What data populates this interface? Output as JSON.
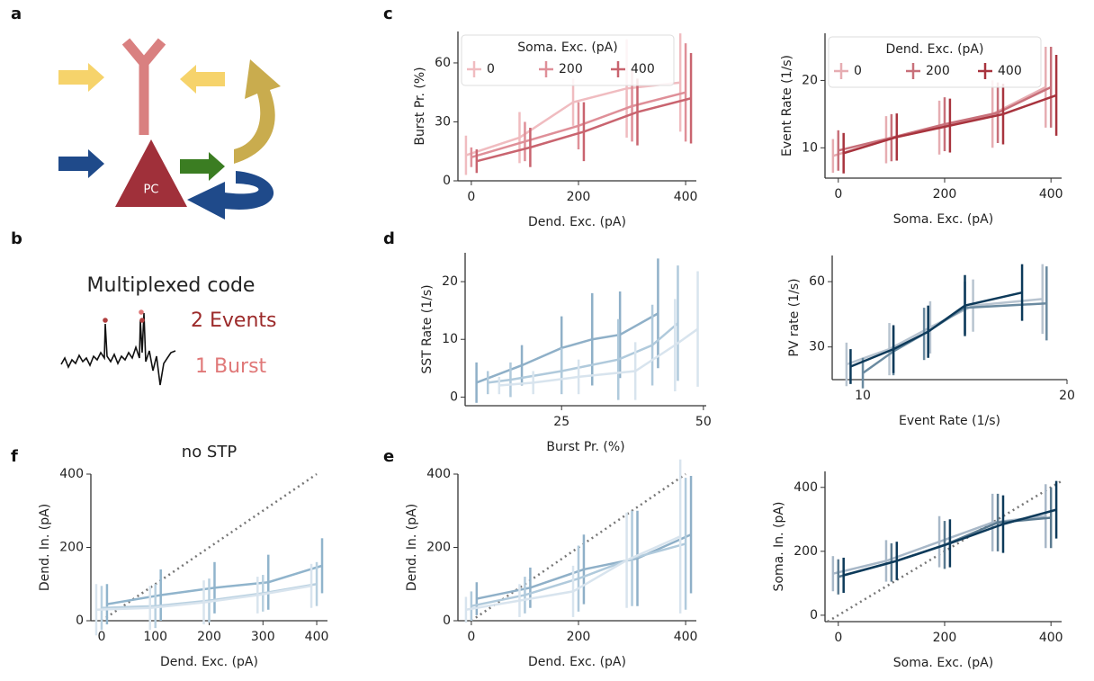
{
  "panel_labels": [
    "a",
    "b",
    "c",
    "d",
    "e",
    "f"
  ],
  "diagram": {
    "cell_label": "PC"
  },
  "code": {
    "title": "Multiplexed code",
    "events": "2 Events",
    "bursts": "1 Burst"
  },
  "chart_data": [
    {
      "type": "line",
      "x_label": "Dend. Exc. (pA)",
      "y_label": "Burst Pr. (%)",
      "xlim": [
        -25,
        420
      ],
      "ylim": [
        0,
        76
      ],
      "xticks": [
        0,
        200,
        400
      ],
      "yticks": [
        0,
        30,
        60
      ],
      "legend": "upper left",
      "legend_title": "Soma. Exc. (pA)",
      "series": [
        {
          "name": "0",
          "color": "#f0bcc0",
          "x": [
            -10,
            90,
            190,
            290,
            390
          ],
          "values": [
            13,
            22,
            40,
            47,
            50
          ],
          "errors": [
            10,
            13,
            12,
            25,
            25
          ]
        },
        {
          "name": "200",
          "color": "#df8f98",
          "x": [
            0,
            100,
            200,
            300,
            400
          ],
          "values": [
            12,
            20,
            28,
            38,
            45
          ],
          "errors": [
            5,
            10,
            12,
            18,
            25
          ]
        },
        {
          "name": "400",
          "color": "#c9646f",
          "x": [
            10,
            110,
            210,
            310,
            410
          ],
          "values": [
            10,
            17,
            25,
            35,
            42
          ],
          "errors": [
            6,
            10,
            15,
            17,
            23
          ]
        }
      ]
    },
    {
      "type": "line",
      "x_label": "Soma. Exc. (pA)",
      "y_label": "Event Rate (1/s)",
      "xlim": [
        -25,
        420
      ],
      "ylim": [
        5.5,
        27
      ],
      "xticks": [
        0,
        200,
        400
      ],
      "yticks": [
        10,
        20
      ],
      "legend": "upper left",
      "legend_title": "Dend. Exc. (pA)",
      "series": [
        {
          "name": "0",
          "color": "#e6adb2",
          "x": [
            -10,
            90,
            190,
            290,
            390
          ],
          "values": [
            8.8,
            11.2,
            13,
            15,
            19
          ],
          "errors": [
            2.5,
            3.5,
            4,
            5,
            6
          ]
        },
        {
          "name": "200",
          "color": "#c8707a",
          "x": [
            0,
            100,
            200,
            300,
            400
          ],
          "values": [
            9.6,
            11.5,
            13.5,
            15.2,
            19
          ],
          "errors": [
            3,
            3.5,
            4,
            4.5,
            6
          ]
        },
        {
          "name": "400",
          "color": "#a8343e",
          "x": [
            10,
            110,
            210,
            310,
            410
          ],
          "values": [
            9.2,
            11.6,
            13.3,
            15,
            17.8
          ],
          "errors": [
            3,
            3.5,
            4,
            4.5,
            6
          ]
        }
      ]
    },
    {
      "type": "line",
      "x_label": "Burst Pr. (%)",
      "y_label": "SST Rate (1/s)",
      "xlim": [
        8,
        50.5
      ],
      "ylim": [
        -1.5,
        25
      ],
      "xticks": [
        25,
        50
      ],
      "yticks": [
        0,
        10,
        20
      ],
      "series": [
        {
          "color": "#8fb0c8",
          "x": [
            10,
            18,
            25,
            30.4,
            35.3,
            42
          ],
          "values": [
            2.5,
            5.5,
            8.5,
            10,
            10.8,
            14.5
          ],
          "errors": [
            3.5,
            3.5,
            5.5,
            8,
            7.5,
            9.5
          ]
        },
        {
          "color": "#b0cadc",
          "x": [
            12,
            16,
            25,
            35,
            41,
            45.5
          ],
          "values": [
            2.5,
            3,
            4.5,
            6.5,
            9,
            12.8
          ],
          "errors": [
            2,
            3,
            4,
            7,
            7,
            10
          ]
        },
        {
          "color": "#d8e4ee",
          "x": [
            14,
            20,
            28,
            38,
            45,
            49
          ],
          "values": [
            2,
            2.5,
            3.5,
            4.5,
            9,
            11.8
          ],
          "errors": [
            1.5,
            2,
            3,
            5,
            8,
            10
          ]
        }
      ]
    },
    {
      "type": "line",
      "x_label": "Event Rate (1/s)",
      "y_label": "PV rate (1/s)",
      "xlim": [
        8.5,
        20
      ],
      "ylim": [
        15,
        72
      ],
      "xticks": [
        10,
        20
      ],
      "yticks": [
        30,
        60
      ],
      "series": [
        {
          "color": "#b8c4d0",
          "x": [
            9.2,
            11.3,
            13.3,
            15.4,
            18.8
          ],
          "values": [
            22,
            29,
            39,
            49,
            52
          ],
          "errors": [
            10,
            12,
            12,
            12,
            16
          ]
        },
        {
          "color": "#6a8aa0",
          "x": [
            10,
            11.5,
            13,
            15,
            19
          ],
          "values": [
            18,
            28,
            36,
            48,
            50
          ],
          "errors": [
            7,
            11,
            12,
            12,
            17
          ]
        },
        {
          "color": "#0d3a5a",
          "x": [
            9.4,
            11.5,
            13.2,
            15,
            17.8
          ],
          "values": [
            21,
            29,
            37,
            49,
            55
          ],
          "errors": [
            8,
            11,
            12,
            14,
            13
          ]
        }
      ]
    },
    {
      "type": "line",
      "title": "no STP",
      "x_label": "Dend. Exc. (pA)",
      "y_label": "Dend. In. (pA)",
      "xlim": [
        -20,
        420
      ],
      "ylim": [
        0,
        400
      ],
      "xticks": [
        0,
        100,
        200,
        300,
        400
      ],
      "yticks": [
        0,
        200,
        400
      ],
      "identity_line": true,
      "series": [
        {
          "color": "#90b4cc",
          "x": [
            10,
            110,
            210,
            310,
            410
          ],
          "values": [
            45,
            70,
            90,
            105,
            150
          ],
          "errors": [
            55,
            70,
            70,
            75,
            75
          ]
        },
        {
          "color": "#b8d0e0",
          "x": [
            0,
            100,
            200,
            300,
            400
          ],
          "values": [
            35,
            40,
            55,
            75,
            100
          ],
          "errors": [
            60,
            60,
            60,
            50,
            60
          ]
        },
        {
          "color": "#d8e4ee",
          "x": [
            -10,
            90,
            190,
            290,
            390
          ],
          "values": [
            30,
            35,
            50,
            70,
            95
          ],
          "errors": [
            70,
            60,
            60,
            50,
            60
          ]
        }
      ]
    },
    {
      "type": "line",
      "x_label": "Dend. Exc. (pA)",
      "y_label": "Dend. In. (pA)",
      "xlim": [
        -25,
        420
      ],
      "ylim": [
        0,
        400
      ],
      "xticks": [
        0,
        200,
        400
      ],
      "yticks": [
        0,
        200,
        400
      ],
      "identity_line": true,
      "series": [
        {
          "color": "#8fb0c8",
          "x": [
            10,
            110,
            210,
            310,
            410
          ],
          "values": [
            60,
            90,
            140,
            170,
            235
          ],
          "errors": [
            45,
            55,
            95,
            130,
            160
          ]
        },
        {
          "color": "#b0cadc",
          "x": [
            0,
            100,
            200,
            300,
            400
          ],
          "values": [
            40,
            70,
            115,
            170,
            210
          ],
          "errors": [
            40,
            50,
            90,
            130,
            180
          ]
        },
        {
          "color": "#d8e4ee",
          "x": [
            -10,
            90,
            190,
            290,
            390
          ],
          "values": [
            30,
            55,
            80,
            165,
            230
          ],
          "errors": [
            35,
            45,
            70,
            130,
            210
          ]
        }
      ]
    },
    {
      "type": "line",
      "x_label": "Soma. Exc. (pA)",
      "y_label": "Soma. In. (pA)",
      "xlim": [
        -25,
        420
      ],
      "ylim": [
        -20,
        450
      ],
      "xticks": [
        0,
        200,
        400
      ],
      "yticks": [
        0,
        200,
        400
      ],
      "identity_line": true,
      "series": [
        {
          "color": "#a8b8c8",
          "x": [
            -10,
            90,
            190,
            290,
            390
          ],
          "values": [
            130,
            170,
            230,
            290,
            310
          ],
          "errors": [
            55,
            65,
            80,
            90,
            100
          ]
        },
        {
          "color": "#5a7a90",
          "x": [
            0,
            100,
            200,
            300,
            400
          ],
          "values": [
            120,
            165,
            220,
            290,
            305
          ],
          "errors": [
            55,
            60,
            75,
            90,
            95
          ]
        },
        {
          "color": "#0d3a5a",
          "x": [
            10,
            110,
            210,
            310,
            410
          ],
          "values": [
            125,
            170,
            225,
            285,
            330
          ],
          "errors": [
            55,
            60,
            75,
            90,
            90
          ]
        }
      ]
    }
  ]
}
